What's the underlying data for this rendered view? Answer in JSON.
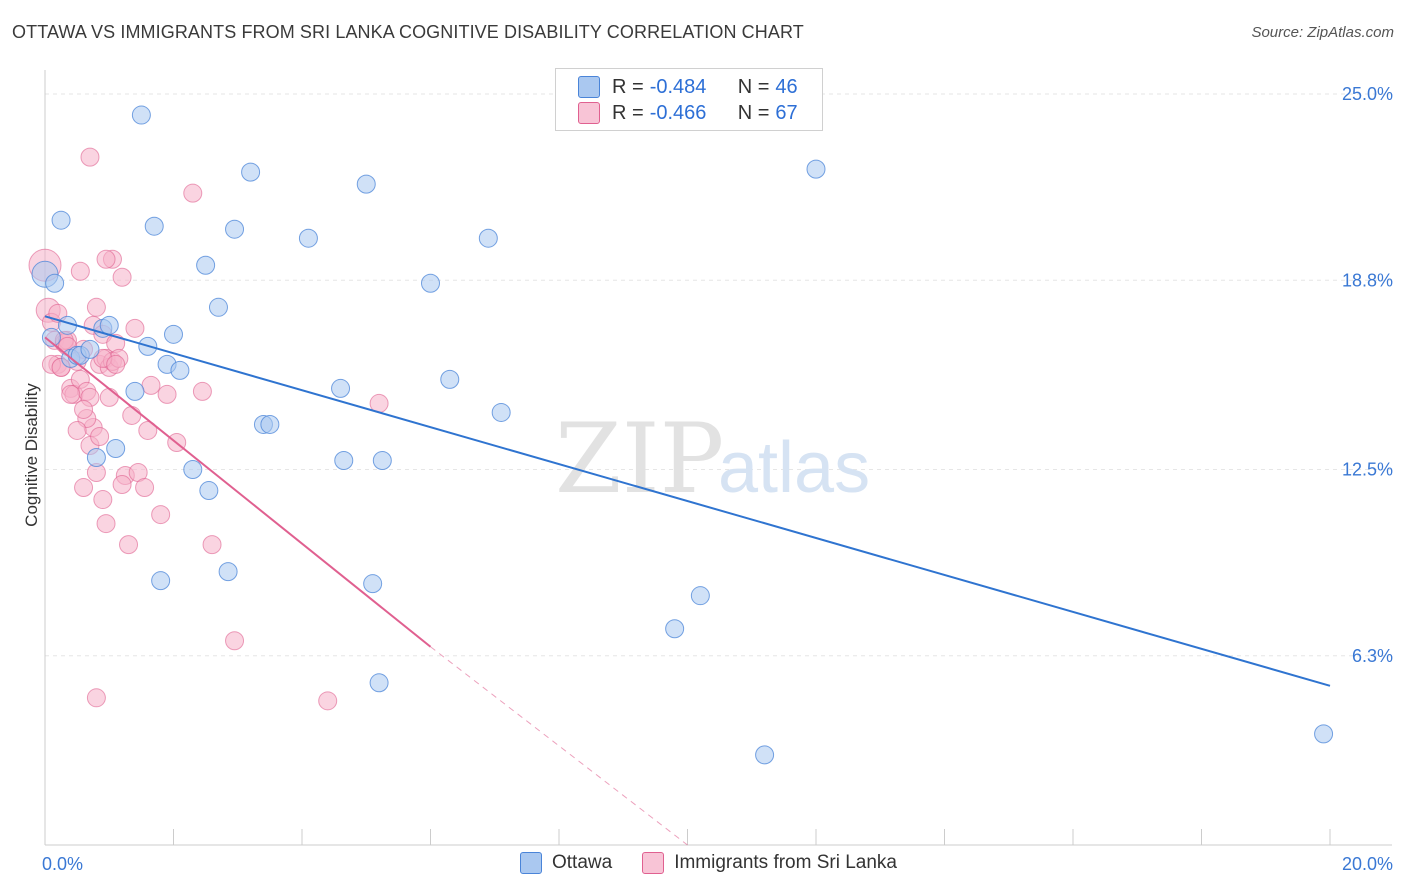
{
  "header": {
    "title": "OTTAWA VS IMMIGRANTS FROM SRI LANKA COGNITIVE DISABILITY CORRELATION CHART",
    "source": "Source: ZipAtlas.com"
  },
  "legend": {
    "rows": [
      {
        "r_label": "R =",
        "r_value": "-0.484",
        "n_label": "N =",
        "n_value": "46"
      },
      {
        "r_label": "R =",
        "r_value": "-0.466",
        "n_label": "N =",
        "n_value": "67"
      }
    ]
  },
  "bottom_legend": {
    "items": [
      {
        "label": "Ottawa"
      },
      {
        "label": "Immigrants from Sri Lanka"
      }
    ]
  },
  "watermark": {
    "zip": "ZIP",
    "atlas": "atlas"
  },
  "colors": {
    "blue": "#4a84d8",
    "blue_fill": "#aac8f0",
    "pink": "#e06090",
    "pink_fill": "#f5b0c8",
    "grid": "#e6e6e6",
    "tick_text": "#3a78d4"
  },
  "chart_data": {
    "type": "scatter",
    "title": "OTTAWA VS IMMIGRANTS FROM SRI LANKA COGNITIVE DISABILITY CORRELATION CHART",
    "xlabel": "",
    "ylabel": "Cognitive Disability",
    "xlim": [
      0,
      20
    ],
    "ylim": [
      0,
      25.8
    ],
    "x_tick_labels": [
      "0.0%",
      "20.0%"
    ],
    "y_ticks": [
      6.3,
      12.5,
      18.8,
      25.0
    ],
    "y_tick_labels": [
      "6.3%",
      "12.5%",
      "18.8%",
      "25.0%"
    ],
    "grid": true,
    "series": [
      {
        "name": "Ottawa",
        "r": -0.484,
        "n": 46,
        "trend": {
          "x0": 0.0,
          "y0": 17.6,
          "x1": 20.0,
          "y1": 5.3
        },
        "points": [
          [
            0.0,
            19.0
          ],
          [
            0.15,
            18.7
          ],
          [
            0.25,
            20.8
          ],
          [
            0.35,
            17.3
          ],
          [
            0.4,
            16.2
          ],
          [
            0.5,
            16.3
          ],
          [
            0.55,
            16.3
          ],
          [
            0.7,
            16.5
          ],
          [
            0.8,
            12.9
          ],
          [
            0.9,
            17.2
          ],
          [
            1.0,
            17.3
          ],
          [
            1.1,
            13.2
          ],
          [
            1.4,
            15.1
          ],
          [
            1.5,
            24.3
          ],
          [
            1.6,
            16.6
          ],
          [
            1.7,
            20.6
          ],
          [
            1.8,
            8.8
          ],
          [
            1.9,
            16.0
          ],
          [
            2.0,
            17.0
          ],
          [
            2.1,
            15.8
          ],
          [
            2.3,
            12.5
          ],
          [
            2.5,
            19.3
          ],
          [
            2.55,
            11.8
          ],
          [
            2.7,
            17.9
          ],
          [
            2.85,
            9.1
          ],
          [
            2.95,
            20.5
          ],
          [
            3.2,
            22.4
          ],
          [
            3.4,
            14.0
          ],
          [
            3.5,
            14.0
          ],
          [
            4.1,
            20.2
          ],
          [
            4.6,
            15.2
          ],
          [
            4.65,
            12.8
          ],
          [
            5.0,
            22.0
          ],
          [
            5.1,
            8.7
          ],
          [
            5.2,
            5.4
          ],
          [
            5.25,
            12.8
          ],
          [
            6.0,
            18.7
          ],
          [
            6.3,
            15.5
          ],
          [
            6.9,
            20.2
          ],
          [
            7.1,
            14.4
          ],
          [
            9.8,
            7.2
          ],
          [
            10.2,
            8.3
          ],
          [
            11.2,
            3.0
          ],
          [
            12.0,
            22.5
          ],
          [
            19.9,
            3.7
          ],
          [
            0.1,
            16.9
          ]
        ]
      },
      {
        "name": "Immigrants from Sri Lanka",
        "r": -0.466,
        "n": 67,
        "trend": {
          "x0": 0.0,
          "y0": 16.9,
          "x1": 6.0,
          "y1": 6.6
        },
        "trend_dashed": {
          "x0": 6.0,
          "y0": 6.6,
          "x1": 10.0,
          "y1": 0.0
        },
        "points": [
          [
            0.0,
            19.3
          ],
          [
            0.05,
            17.8
          ],
          [
            0.1,
            17.4
          ],
          [
            0.15,
            16.8
          ],
          [
            0.2,
            16.0
          ],
          [
            0.25,
            15.9
          ],
          [
            0.3,
            16.7
          ],
          [
            0.35,
            16.8
          ],
          [
            0.4,
            15.2
          ],
          [
            0.45,
            15.0
          ],
          [
            0.5,
            16.1
          ],
          [
            0.55,
            15.5
          ],
          [
            0.55,
            19.1
          ],
          [
            0.6,
            16.5
          ],
          [
            0.65,
            15.1
          ],
          [
            0.7,
            14.9
          ],
          [
            0.75,
            17.3
          ],
          [
            0.8,
            17.9
          ],
          [
            0.85,
            16.0
          ],
          [
            0.9,
            17.0
          ],
          [
            0.95,
            16.2
          ],
          [
            0.7,
            13.3
          ],
          [
            0.75,
            13.9
          ],
          [
            0.8,
            12.4
          ],
          [
            0.65,
            14.2
          ],
          [
            0.6,
            14.5
          ],
          [
            0.85,
            13.6
          ],
          [
            0.9,
            11.5
          ],
          [
            0.95,
            10.7
          ],
          [
            1.0,
            15.9
          ],
          [
            1.05,
            16.1
          ],
          [
            1.1,
            16.7
          ],
          [
            1.15,
            16.2
          ],
          [
            1.2,
            18.9
          ],
          [
            1.25,
            12.3
          ],
          [
            1.3,
            10.0
          ],
          [
            1.35,
            14.3
          ],
          [
            1.4,
            17.2
          ],
          [
            1.45,
            12.4
          ],
          [
            1.55,
            11.9
          ],
          [
            1.6,
            13.8
          ],
          [
            1.65,
            15.3
          ],
          [
            1.05,
            19.5
          ],
          [
            0.95,
            19.5
          ],
          [
            0.7,
            22.9
          ],
          [
            1.8,
            11.0
          ],
          [
            1.9,
            15.0
          ],
          [
            2.05,
            13.4
          ],
          [
            2.3,
            21.7
          ],
          [
            2.45,
            15.1
          ],
          [
            2.6,
            10.0
          ],
          [
            2.95,
            6.8
          ],
          [
            4.4,
            4.8
          ],
          [
            5.2,
            14.7
          ],
          [
            1.2,
            12.0
          ],
          [
            0.6,
            11.9
          ],
          [
            0.8,
            4.9
          ],
          [
            0.3,
            16.8
          ],
          [
            0.2,
            17.7
          ],
          [
            0.1,
            16.0
          ],
          [
            0.4,
            15.0
          ],
          [
            0.5,
            13.8
          ],
          [
            0.9,
            16.2
          ],
          [
            1.0,
            14.9
          ],
          [
            1.1,
            16.0
          ],
          [
            0.35,
            16.6
          ],
          [
            0.25,
            15.9
          ]
        ]
      }
    ]
  }
}
